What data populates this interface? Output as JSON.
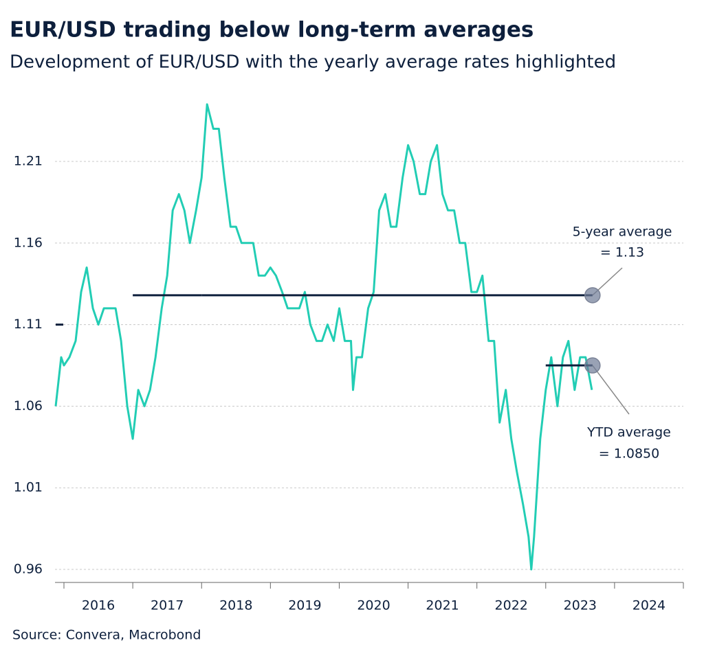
{
  "chart_data": {
    "type": "line",
    "title": "EUR/USD trading below long-term averages",
    "subtitle": "Development of EUR/USD with the yearly average rates highlighted",
    "source": "Source: Convera, Macrobond",
    "xlim": [
      2015.87,
      2025
    ],
    "ylim": [
      0.952,
      1.25
    ],
    "yticks": [
      0.96,
      1.01,
      1.06,
      1.11,
      1.16,
      1.21
    ],
    "xtick_marks": [
      2016,
      2017,
      2018,
      2019,
      2020,
      2021,
      2022,
      2023,
      2024,
      2025
    ],
    "xticks": [
      {
        "value": 2016.5,
        "label": "2016"
      },
      {
        "value": 2017.5,
        "label": "2017"
      },
      {
        "value": 2018.5,
        "label": "2018"
      },
      {
        "value": 2019.5,
        "label": "2019"
      },
      {
        "value": 2020.5,
        "label": "2020"
      },
      {
        "value": 2021.5,
        "label": "2021"
      },
      {
        "value": 2022.5,
        "label": "2022"
      },
      {
        "value": 2023.5,
        "label": "2023"
      },
      {
        "value": 2024.5,
        "label": "2024"
      }
    ],
    "grid": true,
    "series": [
      {
        "color": "#22cdb4",
        "x": [
          2015.88,
          2015.96,
          2016.0,
          2016.08,
          2016.17,
          2016.25,
          2016.33,
          2016.42,
          2016.5,
          2016.58,
          2016.67,
          2016.75,
          2016.83,
          2016.92,
          2017.0,
          2017.08,
          2017.17,
          2017.25,
          2017.33,
          2017.42,
          2017.5,
          2017.58,
          2017.67,
          2017.75,
          2017.83,
          2017.92,
          2018.0,
          2018.08,
          2018.17,
          2018.25,
          2018.33,
          2018.42,
          2018.5,
          2018.58,
          2018.67,
          2018.75,
          2018.83,
          2018.92,
          2019.0,
          2019.08,
          2019.17,
          2019.25,
          2019.33,
          2019.42,
          2019.5,
          2019.58,
          2019.67,
          2019.75,
          2019.83,
          2019.92,
          2020.0,
          2020.08,
          2020.17,
          2020.2,
          2020.25,
          2020.33,
          2020.42,
          2020.5,
          2020.58,
          2020.67,
          2020.75,
          2020.83,
          2020.92,
          2021.0,
          2021.08,
          2021.17,
          2021.25,
          2021.33,
          2021.42,
          2021.5,
          2021.58,
          2021.67,
          2021.75,
          2021.83,
          2021.92,
          2022.0,
          2022.08,
          2022.17,
          2022.25,
          2022.33,
          2022.42,
          2022.5,
          2022.58,
          2022.67,
          2022.75,
          2022.79,
          2022.83,
          2022.92,
          2023.0,
          2023.08,
          2023.17,
          2023.25,
          2023.33,
          2023.42,
          2023.5,
          2023.58,
          2023.67
        ],
        "values": [
          1.06,
          1.09,
          1.085,
          1.09,
          1.1,
          1.13,
          1.145,
          1.12,
          1.11,
          1.12,
          1.12,
          1.12,
          1.1,
          1.06,
          1.04,
          1.07,
          1.06,
          1.07,
          1.09,
          1.12,
          1.14,
          1.18,
          1.19,
          1.18,
          1.16,
          1.18,
          1.2,
          1.245,
          1.23,
          1.23,
          1.2,
          1.17,
          1.17,
          1.16,
          1.16,
          1.16,
          1.14,
          1.14,
          1.145,
          1.14,
          1.13,
          1.12,
          1.12,
          1.12,
          1.13,
          1.11,
          1.1,
          1.1,
          1.11,
          1.1,
          1.12,
          1.1,
          1.1,
          1.07,
          1.09,
          1.09,
          1.12,
          1.13,
          1.18,
          1.19,
          1.17,
          1.17,
          1.2,
          1.22,
          1.21,
          1.19,
          1.19,
          1.21,
          1.22,
          1.19,
          1.18,
          1.18,
          1.16,
          1.16,
          1.13,
          1.13,
          1.14,
          1.1,
          1.1,
          1.05,
          1.07,
          1.04,
          1.02,
          1.0,
          0.98,
          0.96,
          0.98,
          1.04,
          1.07,
          1.09,
          1.06,
          1.09,
          1.1,
          1.07,
          1.09,
          1.09,
          1.07
        ]
      }
    ],
    "averages": [
      {
        "x": [
          2015.88,
          2015.99
        ],
        "value": 1.11
      },
      {
        "x": [
          2017.0,
          2018.0
        ],
        "value": 1.128
      },
      {
        "x": [
          2018.0,
          2023.68
        ],
        "value": 1.128
      },
      {
        "x": [
          2023.0,
          2023.68
        ],
        "value": 1.085
      }
    ],
    "annotations": [
      {
        "lines": [
          "5-year average",
          "= 1.13"
        ]
      },
      {
        "lines": [
          "YTD average",
          "= 1.0850"
        ]
      }
    ]
  }
}
